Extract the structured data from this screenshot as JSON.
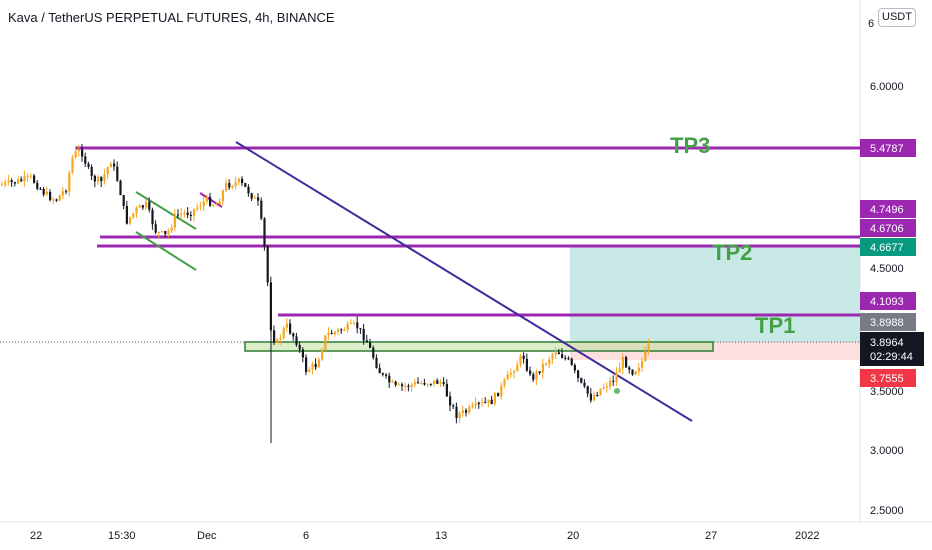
{
  "header": {
    "title": "Kava / TetherUS PERPETUAL FUTURES, 4h, BINANCE",
    "currency_button": "USDT",
    "clipped_axis_label": "6"
  },
  "price_axis": {
    "ticks": [
      "6.0000",
      "4.5000",
      "3.5000",
      "3.0000",
      "2.5000"
    ],
    "badges": [
      {
        "id": "tp3",
        "label": "5.4787",
        "bg": "#9c27b0",
        "fg": "#ffffff"
      },
      {
        "id": "lvl1",
        "label": "4.7496",
        "bg": "#9c27b0",
        "fg": "#ffffff"
      },
      {
        "id": "lvl2",
        "label": "4.6706",
        "bg": "#9c27b0",
        "fg": "#ffffff"
      },
      {
        "id": "tp2",
        "label": "4.6677",
        "bg": "#089981",
        "fg": "#ffffff"
      },
      {
        "id": "tp1",
        "label": "4.1093",
        "bg": "#9c27b0",
        "fg": "#ffffff"
      },
      {
        "id": "entry",
        "label": "3.8988",
        "bg": "#787b86",
        "fg": "#ffffff"
      },
      {
        "id": "stop",
        "label": "3.7555",
        "bg": "#f23645",
        "fg": "#ffffff"
      }
    ],
    "last_price": {
      "label": "3.8964",
      "countdown": "02:29:44",
      "bg": "#131722"
    }
  },
  "time_axis": {
    "labels": [
      "22",
      "15:30",
      "Dec",
      "6",
      "13",
      "20",
      "27",
      "2022"
    ]
  },
  "annotations": {
    "tp1": "TP1",
    "tp2": "TP2",
    "tp3": "TP3"
  },
  "colors": {
    "up": "#f5a623",
    "down": "#131722",
    "levels": "#9c27b0",
    "trendline": "#3f2a9b",
    "profit_zone": "#b2dfdb",
    "loss_zone": "#fcd7d7",
    "box": "#2e7d32",
    "tp_text": "#43a047"
  }
}
